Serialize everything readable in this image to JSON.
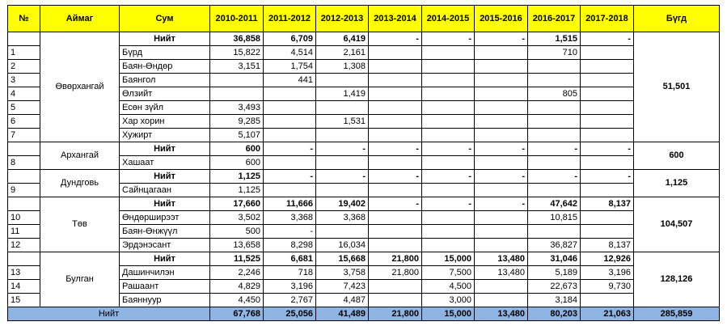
{
  "headers": {
    "no": "№",
    "aimag": "Аймаг",
    "sum": "Сум",
    "years": [
      "2010-2011",
      "2011-2012",
      "2012-2013",
      "2013-2014",
      "2014-2015",
      "2015-2016",
      "2016-2017",
      "2017-2018"
    ],
    "total": "Бүгд"
  },
  "groups": [
    {
      "aimag": "Өвөрхангай",
      "group_total": "51,501",
      "rows": [
        {
          "no": "",
          "sum": "Нийт",
          "bold": true,
          "v": [
            "36,858",
            "6,709",
            "6,419",
            "-",
            "-",
            "-",
            "1,515",
            "-"
          ]
        },
        {
          "no": "1",
          "sum": "Бүрд",
          "bold": false,
          "v": [
            "15,822",
            "4,514",
            "2,161",
            "",
            "",
            "",
            "710",
            ""
          ]
        },
        {
          "no": "2",
          "sum": "Баян-Өндөр",
          "bold": false,
          "v": [
            "3,151",
            "1,754",
            "1,308",
            "",
            "",
            "",
            "",
            ""
          ]
        },
        {
          "no": "3",
          "sum": "Баянгол",
          "bold": false,
          "v": [
            "",
            "441",
            "",
            "",
            "",
            "",
            "",
            ""
          ]
        },
        {
          "no": "4",
          "sum": "Өлзийт",
          "bold": false,
          "v": [
            "",
            "",
            "1,419",
            "",
            "",
            "",
            "805",
            ""
          ]
        },
        {
          "no": "5",
          "sum": "Есөн зүйл",
          "bold": false,
          "v": [
            "3,493",
            "",
            "",
            "",
            "",
            "",
            "",
            ""
          ]
        },
        {
          "no": "6",
          "sum": "Хар хорин",
          "bold": false,
          "v": [
            "9,285",
            "",
            "1,531",
            "",
            "",
            "",
            "",
            ""
          ]
        },
        {
          "no": "7",
          "sum": "Хужирт",
          "bold": false,
          "v": [
            "5,107",
            "",
            "",
            "",
            "",
            "",
            "",
            ""
          ]
        }
      ]
    },
    {
      "aimag": "Архангай",
      "group_total": "600",
      "rows": [
        {
          "no": "",
          "sum": "Нийт",
          "bold": true,
          "v": [
            "600",
            "-",
            "-",
            "-",
            "-",
            "-",
            "-",
            "-"
          ]
        },
        {
          "no": "8",
          "sum": "Хашаат",
          "bold": false,
          "v": [
            "600",
            "",
            "",
            "",
            "",
            "",
            "",
            ""
          ]
        }
      ]
    },
    {
      "aimag": "Дундговь",
      "group_total": "1,125",
      "rows": [
        {
          "no": "",
          "sum": "Нийт",
          "bold": true,
          "v": [
            "1,125",
            "-",
            "-",
            "-",
            "-",
            "-",
            "-",
            "-"
          ]
        },
        {
          "no": "9",
          "sum": "Сайнцагаан",
          "bold": false,
          "v": [
            "1,125",
            "",
            "",
            "",
            "",
            "",
            "",
            ""
          ]
        }
      ]
    },
    {
      "aimag": "Төв",
      "group_total": "104,507",
      "rows": [
        {
          "no": "",
          "sum": "Нийт",
          "bold": true,
          "v": [
            "17,660",
            "11,666",
            "19,402",
            "-",
            "-",
            "-",
            "47,642",
            "8,137"
          ]
        },
        {
          "no": "10",
          "sum": "Өндөрширээт",
          "bold": false,
          "v": [
            "3,502",
            "3,368",
            "3,368",
            "",
            "",
            "",
            "10,815",
            ""
          ]
        },
        {
          "no": "11",
          "sum": "Баян-Өнжүүл",
          "bold": false,
          "v": [
            "500",
            "-",
            "",
            "",
            "",
            "",
            "",
            ""
          ]
        },
        {
          "no": "12",
          "sum": "Эрдэнэсант",
          "bold": false,
          "v": [
            "13,658",
            "8,298",
            "16,034",
            "",
            "",
            "",
            "36,827",
            "8,137"
          ]
        }
      ]
    },
    {
      "aimag": "Булган",
      "group_total": "128,126",
      "rows": [
        {
          "no": "",
          "sum": "Нийт",
          "bold": true,
          "v": [
            "11,525",
            "6,681",
            "15,668",
            "21,800",
            "15,000",
            "13,480",
            "31,046",
            "12,926"
          ]
        },
        {
          "no": "13",
          "sum": "Дашинчилэн",
          "bold": false,
          "v": [
            "2,246",
            "718",
            "3,758",
            "21,800",
            "7,500",
            "13,480",
            "5,189",
            "3,196"
          ]
        },
        {
          "no": "14",
          "sum": "Рашаант",
          "bold": false,
          "v": [
            "4,829",
            "3,196",
            "7,423",
            "",
            "4,500",
            "",
            "22,673",
            "9,730"
          ]
        },
        {
          "no": "15",
          "sum": "Баяннуур",
          "bold": false,
          "v": [
            "4,450",
            "2,767",
            "4,487",
            "",
            "3,000",
            "",
            "3,184",
            ""
          ]
        }
      ]
    }
  ],
  "grand_total": {
    "label": "Нийт",
    "v": [
      "67,768",
      "25,056",
      "41,489",
      "21,800",
      "15,000",
      "13,480",
      "80,203",
      "21,063"
    ],
    "total": "285,859"
  }
}
